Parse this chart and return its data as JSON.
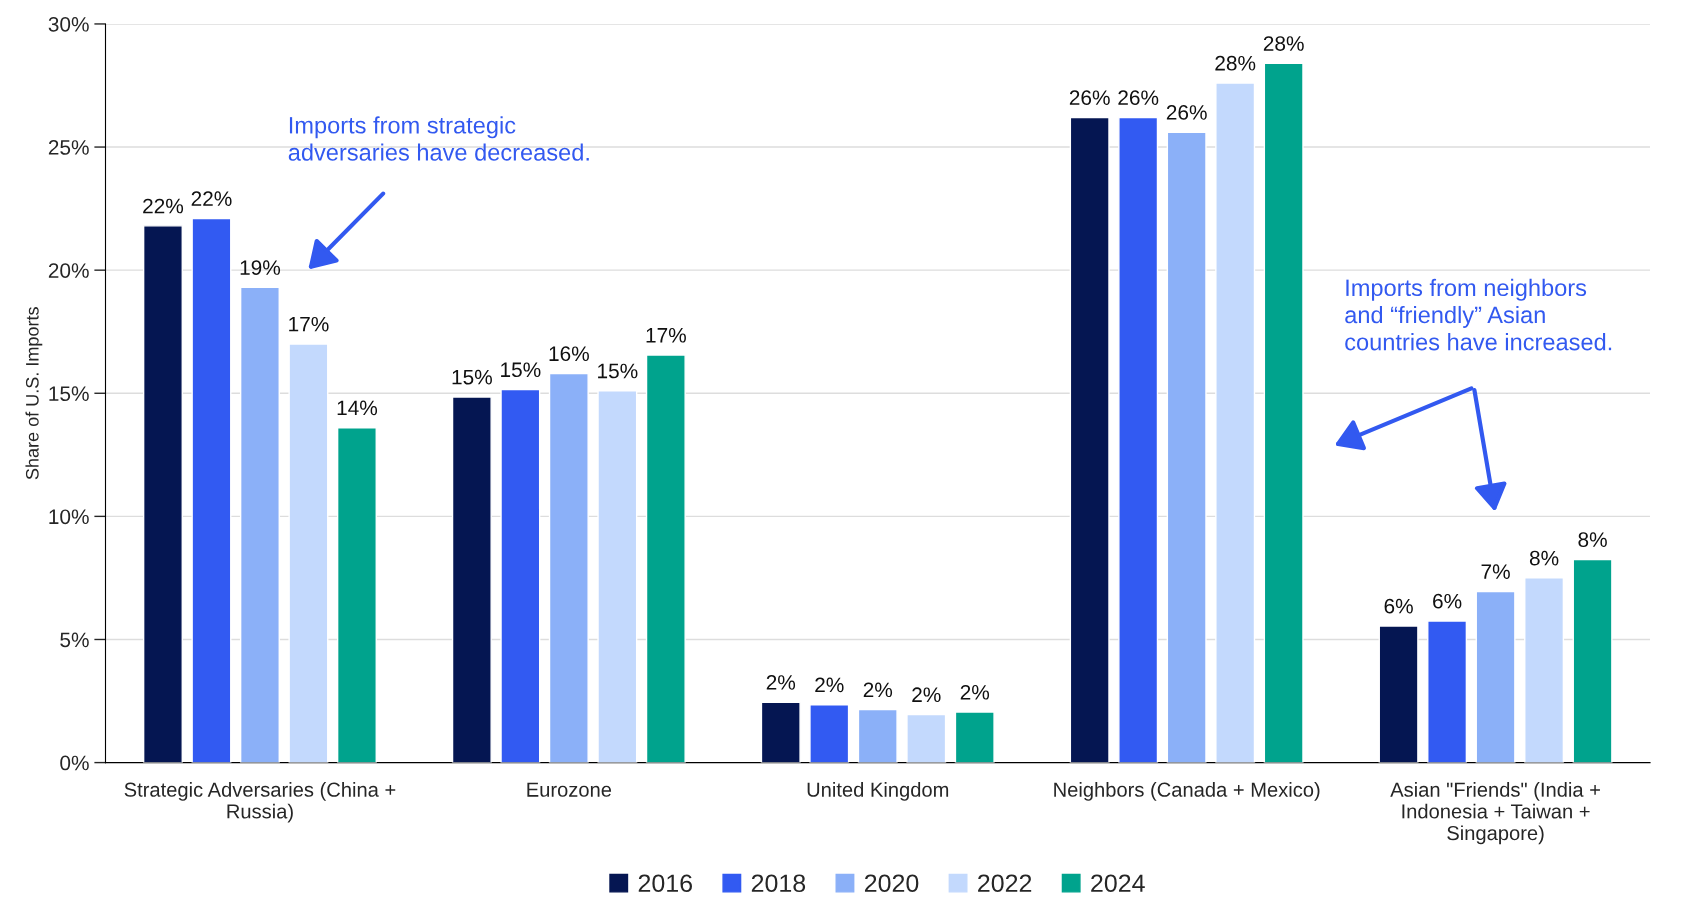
{
  "chart_data": {
    "type": "bar",
    "ylabel": "Share of U.S. Imports",
    "categories": [
      "Strategic Adversaries (China + Russia)",
      "Eurozone",
      "United Kingdom",
      "Neighbors (Canada + Mexico)",
      "Asian \"Friends\" (India + Indonesia + Taiwan + Singapore)"
    ],
    "series": [
      {
        "name": "2016",
        "color": "#051652",
        "values": [
          21.8,
          14.85,
          2.45,
          26.2,
          5.55
        ],
        "value_labels": [
          "22%",
          "15%",
          "2%",
          "26%",
          "6%"
        ]
      },
      {
        "name": "2018",
        "color": "#325af2",
        "values": [
          22.1,
          15.15,
          2.35,
          26.2,
          5.75
        ],
        "value_labels": [
          "22%",
          "15%",
          "2%",
          "26%",
          "6%"
        ]
      },
      {
        "name": "2020",
        "color": "#8bb0f8",
        "values": [
          19.3,
          15.8,
          2.15,
          25.6,
          6.95
        ],
        "value_labels": [
          "19%",
          "16%",
          "2%",
          "26%",
          "7%"
        ]
      },
      {
        "name": "2022",
        "color": "#c3d9fd",
        "values": [
          17.0,
          15.1,
          1.95,
          27.6,
          7.5
        ],
        "value_labels": [
          "17%",
          "15%",
          "2%",
          "28%",
          "8%"
        ]
      },
      {
        "name": "2024",
        "color": "#00a38d",
        "values": [
          13.6,
          16.55,
          2.05,
          28.4,
          8.25
        ],
        "value_labels": [
          "14%",
          "17%",
          "2%",
          "28%",
          "8%"
        ]
      }
    ],
    "ylim": [
      0,
      30
    ],
    "yticks": [
      {
        "value": 0,
        "label": "0%"
      },
      {
        "value": 5,
        "label": "5%"
      },
      {
        "value": 10,
        "label": "10%"
      },
      {
        "value": 15,
        "label": "15%"
      },
      {
        "value": 20,
        "label": "20%"
      },
      {
        "value": 25,
        "label": "25%"
      },
      {
        "value": 30,
        "label": "30%"
      }
    ],
    "grid": "y",
    "legend": "bottom",
    "annotations": [
      "Imports from strategic adversaries have decreased.",
      "Imports from neighbors and “friendly” Asian countries have increased."
    ]
  }
}
